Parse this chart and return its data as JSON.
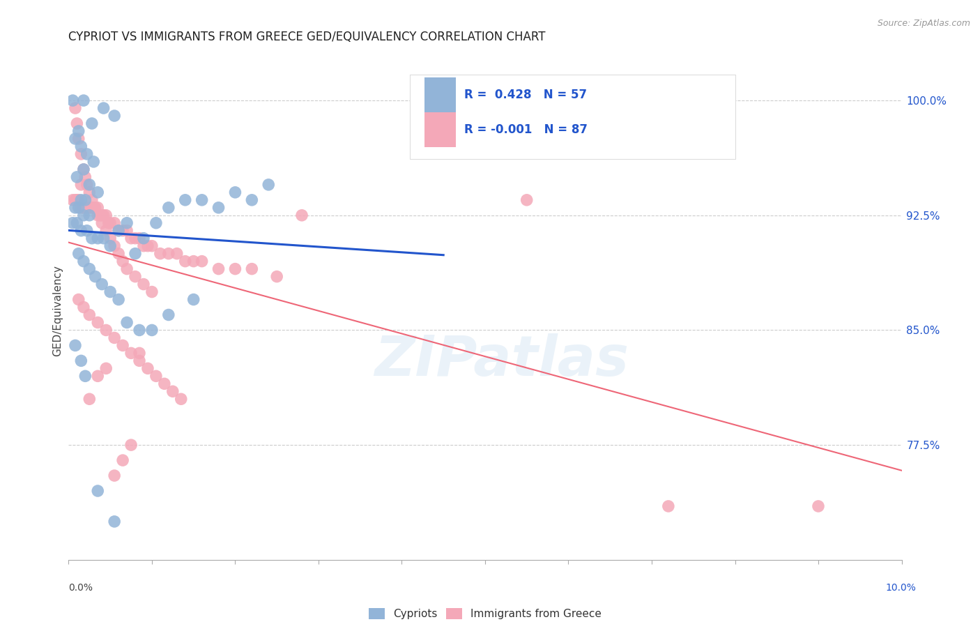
{
  "title": "CYPRIOT VS IMMIGRANTS FROM GREECE GED/EQUIVALENCY CORRELATION CHART",
  "source": "Source: ZipAtlas.com",
  "ylabel": "GED/Equivalency",
  "yticks": [
    100.0,
    92.5,
    85.0,
    77.5
  ],
  "xmin": 0.0,
  "xmax": 10.0,
  "ymin": 70.0,
  "ymax": 102.5,
  "legend_r1": "R =  0.428   N = 57",
  "legend_r2": "R = -0.001   N = 87",
  "watermark": "ZIPatlas",
  "blue_color": "#92B4D8",
  "pink_color": "#F4A8B8",
  "trend_blue": "#2255CC",
  "trend_pink": "#EE6677",
  "cypriot_x": [
    0.05,
    0.18,
    0.42,
    0.55,
    0.28,
    0.12,
    0.08,
    0.15,
    0.22,
    0.3,
    0.18,
    0.1,
    0.25,
    0.35,
    0.2,
    0.15,
    0.08,
    0.12,
    0.18,
    0.25,
    0.05,
    0.1,
    0.15,
    0.22,
    0.28,
    0.35,
    0.42,
    0.5,
    0.6,
    0.7,
    0.8,
    0.9,
    1.05,
    1.2,
    1.4,
    1.6,
    1.8,
    2.0,
    2.2,
    2.4,
    0.12,
    0.18,
    0.25,
    0.32,
    0.4,
    0.5,
    0.6,
    0.7,
    0.85,
    1.0,
    1.2,
    1.5,
    0.08,
    0.15,
    0.2,
    0.35,
    0.55
  ],
  "cypriot_y": [
    100.0,
    100.0,
    99.5,
    99.0,
    98.5,
    98.0,
    97.5,
    97.0,
    96.5,
    96.0,
    95.5,
    95.0,
    94.5,
    94.0,
    93.5,
    93.5,
    93.0,
    93.0,
    92.5,
    92.5,
    92.0,
    92.0,
    91.5,
    91.5,
    91.0,
    91.0,
    91.0,
    90.5,
    91.5,
    92.0,
    90.0,
    91.0,
    92.0,
    93.0,
    93.5,
    93.5,
    93.0,
    94.0,
    93.5,
    94.5,
    90.0,
    89.5,
    89.0,
    88.5,
    88.0,
    87.5,
    87.0,
    85.5,
    85.0,
    85.0,
    86.0,
    87.0,
    84.0,
    83.0,
    82.0,
    74.5,
    72.5
  ],
  "greece_x": [
    0.05,
    0.08,
    0.1,
    0.12,
    0.15,
    0.18,
    0.2,
    0.22,
    0.25,
    0.28,
    0.3,
    0.32,
    0.35,
    0.38,
    0.4,
    0.42,
    0.45,
    0.48,
    0.5,
    0.55,
    0.6,
    0.65,
    0.7,
    0.75,
    0.8,
    0.85,
    0.9,
    0.95,
    1.0,
    1.1,
    1.2,
    1.3,
    1.4,
    1.5,
    1.6,
    1.8,
    2.0,
    2.2,
    2.5,
    0.08,
    0.1,
    0.12,
    0.15,
    0.18,
    0.2,
    0.22,
    0.25,
    0.28,
    0.3,
    0.35,
    0.4,
    0.45,
    0.5,
    0.55,
    0.6,
    0.65,
    0.7,
    0.8,
    0.9,
    1.0,
    0.12,
    0.18,
    0.25,
    0.35,
    0.45,
    0.55,
    0.65,
    0.75,
    0.85,
    0.95,
    1.05,
    1.15,
    1.25,
    1.35,
    2.8,
    4.5,
    5.5,
    7.2,
    9.0,
    0.15,
    0.25,
    0.35,
    0.45,
    0.55,
    0.65,
    0.75,
    0.85
  ],
  "greece_y": [
    93.5,
    93.5,
    93.5,
    93.5,
    93.0,
    93.0,
    93.0,
    93.0,
    93.0,
    93.0,
    93.0,
    93.0,
    93.0,
    92.5,
    92.5,
    92.5,
    92.5,
    92.0,
    92.0,
    92.0,
    91.5,
    91.5,
    91.5,
    91.0,
    91.0,
    91.0,
    90.5,
    90.5,
    90.5,
    90.0,
    90.0,
    90.0,
    89.5,
    89.5,
    89.5,
    89.0,
    89.0,
    89.0,
    88.5,
    99.5,
    98.5,
    97.5,
    96.5,
    95.5,
    95.0,
    94.5,
    94.0,
    93.5,
    93.0,
    92.5,
    92.0,
    91.5,
    91.0,
    90.5,
    90.0,
    89.5,
    89.0,
    88.5,
    88.0,
    87.5,
    87.0,
    86.5,
    86.0,
    85.5,
    85.0,
    84.5,
    84.0,
    83.5,
    83.0,
    82.5,
    82.0,
    81.5,
    81.0,
    80.5,
    92.5,
    97.0,
    93.5,
    73.5,
    73.5,
    94.5,
    80.5,
    82.0,
    82.5,
    75.5,
    76.5,
    77.5,
    83.5
  ]
}
